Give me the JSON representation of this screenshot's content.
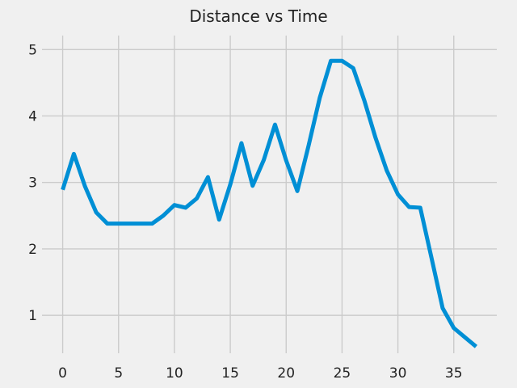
{
  "chart_data": {
    "type": "line",
    "title": "Distance vs Time",
    "xlabel": "",
    "ylabel": "",
    "xlim": [
      -1.85,
      38.85
    ],
    "ylim": [
      0.43,
      5.0
    ],
    "xticks": [
      0,
      5,
      10,
      15,
      20,
      25,
      30,
      35
    ],
    "yticks": [
      1,
      2,
      3,
      4,
      5
    ],
    "grid": true,
    "series": [
      {
        "color": "#008fd5",
        "x": [
          0,
          1,
          2,
          3,
          4,
          5,
          6,
          7,
          8,
          9,
          10,
          11,
          12,
          13,
          14,
          15,
          16,
          17,
          18,
          19,
          20,
          21,
          22,
          23,
          24,
          25,
          26,
          27,
          28,
          29,
          30,
          31,
          32,
          33,
          34,
          35,
          36,
          37
        ],
        "y": [
          2.89,
          3.43,
          2.94,
          2.55,
          2.38,
          2.38,
          2.38,
          2.38,
          2.38,
          2.5,
          2.66,
          2.62,
          2.76,
          3.08,
          2.44,
          2.97,
          3.59,
          2.95,
          3.34,
          3.87,
          3.33,
          2.87,
          3.55,
          4.27,
          4.83,
          4.83,
          4.72,
          4.23,
          3.67,
          3.18,
          2.82,
          2.63,
          2.62,
          1.87,
          1.11,
          0.81,
          0.67,
          0.53
        ]
      }
    ]
  }
}
